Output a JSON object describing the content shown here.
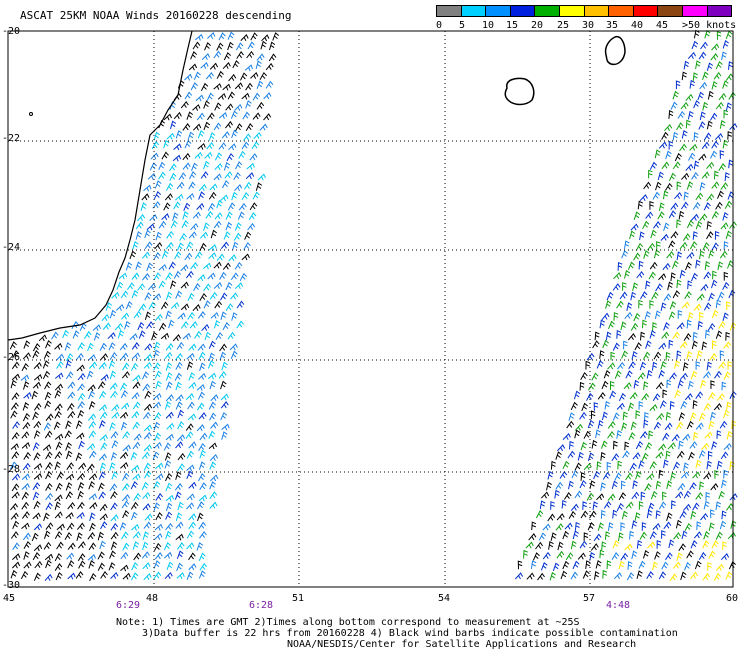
{
  "title": "ASCAT 25KM NOAA Winds 20160228 descending",
  "colorbar": {
    "colors": [
      "#808080",
      "#00d0ff",
      "#0090ff",
      "#0020e0",
      "#00b000",
      "#ffff00",
      "#ffc000",
      "#ff6000",
      "#ff0000",
      "#8b4513",
      "#ff00ff",
      "#8000c0"
    ],
    "labels": [
      "0",
      "5",
      "10",
      "15",
      "20",
      "25",
      "30",
      "35",
      "40",
      "45",
      ">50 knots"
    ]
  },
  "lat_labels": [
    "-20",
    "-22",
    "-24",
    "-26",
    "-28",
    "-30"
  ],
  "lon_labels": [
    "45",
    "48",
    "51",
    "54",
    "57",
    "60"
  ],
  "time_labels": [
    "6:29",
    "6:28",
    "4:48"
  ],
  "notes": [
    "Note: 1) Times are GMT 2)Times along bottom correspond to measurement at ~25S",
    "3)Data buffer is 22 hrs from 20160228 4) Black wind barbs indicate possible contamination",
    "NOAA/NESDIS/Center for Satellite Applications and Research"
  ],
  "map": {
    "lat_range": [
      -20,
      -30
    ],
    "lon_range": [
      45,
      60
    ],
    "swaths": [
      {
        "name": "west-swath",
        "lon_range": [
          45,
          51
        ],
        "dominant_colors": [
          "#00d0ff",
          "#0090ff",
          "#000000"
        ]
      },
      {
        "name": "east-swath",
        "lon_range": [
          55.5,
          60
        ],
        "dominant_colors": [
          "#0020e0",
          "#00b000",
          "#ffff00",
          "#000000"
        ]
      }
    ],
    "land": [
      "Madagascar (south-east coast)",
      "Reunion",
      "Mauritius"
    ]
  }
}
